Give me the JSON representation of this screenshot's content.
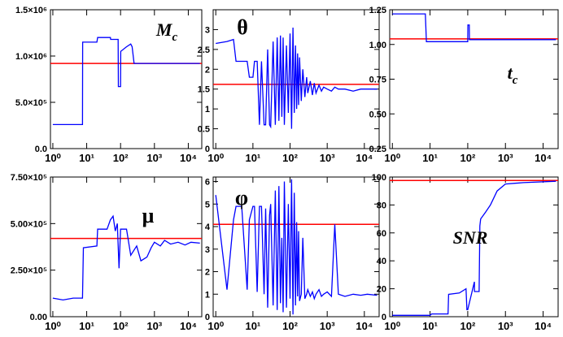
{
  "chart_data": [
    {
      "type": "line",
      "annotation": {
        "main": "M",
        "sub": "c"
      },
      "log_x": true,
      "xlim": [
        0.85,
        25000
      ],
      "xticks": [
        {
          "value": 1,
          "label": "10⁰"
        },
        {
          "value": 10,
          "label": "10¹"
        },
        {
          "value": 100,
          "label": "10²"
        },
        {
          "value": 1000,
          "label": "10³"
        },
        {
          "value": 10000,
          "label": "10⁴"
        }
      ],
      "ylim": [
        0,
        1500000
      ],
      "yticks": [
        {
          "value": 0,
          "label": "0.0"
        },
        {
          "value": 500000,
          "label": "5.0×10⁵"
        },
        {
          "value": 1000000,
          "label": "1.0×10⁶"
        },
        {
          "value": 1500000,
          "label": "1.5×10⁶"
        }
      ],
      "series": [
        {
          "color": "#0000ff",
          "x": [
            1,
            7.5,
            7.6,
            20,
            21,
            50,
            51,
            85,
            86,
            100,
            101,
            150,
            200,
            220,
            250,
            22000
          ],
          "values": [
            260000,
            260000,
            1150000,
            1150000,
            1200000,
            1200000,
            1180000,
            1180000,
            670000,
            670000,
            1050000,
            1100000,
            1130000,
            1100000,
            920000,
            920000
          ]
        }
      ],
      "reference_line": {
        "value": 920000,
        "color": "#ff0000"
      }
    },
    {
      "type": "line",
      "annotation": {
        "main": "θ"
      },
      "log_x": true,
      "xlim": [
        0.85,
        25000
      ],
      "xticks": [
        {
          "value": 1,
          "label": "10⁰"
        },
        {
          "value": 10,
          "label": "10¹"
        },
        {
          "value": 100,
          "label": "10²"
        },
        {
          "value": 1000,
          "label": "10³"
        },
        {
          "value": 10000,
          "label": "10⁴"
        }
      ],
      "ylim": [
        0,
        3.5
      ],
      "yticks": [
        0,
        0.5,
        1,
        1.5,
        2,
        2.5,
        3
      ],
      "series": [
        {
          "color": "#0000ff",
          "x": [
            1,
            2,
            3,
            3.5,
            5,
            7,
            8,
            10,
            11,
            13,
            15,
            17,
            20,
            22,
            25,
            28,
            30,
            35,
            40,
            45,
            50,
            55,
            60,
            65,
            70,
            80,
            90,
            100,
            110,
            120,
            130,
            140,
            150,
            160,
            170,
            180,
            200,
            220,
            250,
            280,
            300,
            350,
            400,
            450,
            500,
            600,
            700,
            800,
            1000,
            1300,
            1600,
            2000,
            3000,
            5000,
            8000,
            12000,
            22000
          ],
          "values": [
            2.65,
            2.7,
            2.75,
            2.2,
            2.2,
            2.2,
            1.8,
            1.8,
            2.2,
            2.2,
            0.6,
            2.2,
            0.6,
            0.6,
            2.5,
            0.6,
            0.55,
            2.7,
            0.6,
            2.8,
            0.7,
            2.85,
            0.8,
            2.8,
            0.6,
            2.6,
            0.9,
            2.9,
            0.5,
            3.05,
            0.9,
            2.6,
            1.0,
            2.4,
            1.1,
            2.3,
            1.2,
            2.0,
            1.3,
            1.8,
            1.4,
            1.7,
            1.35,
            1.65,
            1.4,
            1.6,
            1.45,
            1.55,
            1.5,
            1.45,
            1.55,
            1.5,
            1.5,
            1.45,
            1.5,
            1.5,
            1.5
          ]
        }
      ],
      "reference_line": {
        "value": 1.62,
        "color": "#ff0000"
      }
    },
    {
      "type": "line",
      "annotation": {
        "main": "t",
        "sub": "c"
      },
      "log_x": true,
      "xlim": [
        0.85,
        25000
      ],
      "xticks": [
        {
          "value": 1,
          "label": "10⁰"
        },
        {
          "value": 10,
          "label": "10¹"
        },
        {
          "value": 100,
          "label": "10²"
        },
        {
          "value": 1000,
          "label": "10³"
        },
        {
          "value": 10000,
          "label": "10⁴"
        }
      ],
      "ylim": [
        0.25,
        1.25
      ],
      "yticks": [
        {
          "value": 0.25,
          "label": "0.25"
        },
        {
          "value": 0.5,
          "label": "0.50"
        },
        {
          "value": 0.75,
          "label": "0.75"
        },
        {
          "value": 1,
          "label": "1.00"
        },
        {
          "value": 1.25,
          "label": "1.25"
        }
      ],
      "series": [
        {
          "color": "#0000ff",
          "x": [
            1,
            7.5,
            8,
            100,
            101,
            110,
            111,
            22000
          ],
          "values": [
            1.22,
            1.22,
            1.02,
            1.02,
            1.14,
            1.14,
            1.035,
            1.035
          ]
        }
      ],
      "reference_line": {
        "value": 1.04,
        "color": "#ff0000"
      }
    },
    {
      "type": "line",
      "annotation": {
        "main": "μ"
      },
      "log_x": true,
      "xlim": [
        0.85,
        25000
      ],
      "xticks": [
        {
          "value": 1,
          "label": "10⁰"
        },
        {
          "value": 10,
          "label": "10¹"
        },
        {
          "value": 100,
          "label": "10²"
        },
        {
          "value": 1000,
          "label": "10³"
        },
        {
          "value": 10000,
          "label": "10⁴"
        }
      ],
      "ylim": [
        0,
        750000
      ],
      "yticks": [
        {
          "value": 0,
          "label": "0.00"
        },
        {
          "value": 250000,
          "label": "2.50×10⁵"
        },
        {
          "value": 500000,
          "label": "5.00×10⁵"
        },
        {
          "value": 750000,
          "label": "7.50×10⁵"
        }
      ],
      "series": [
        {
          "color": "#0000ff",
          "x": [
            1,
            2,
            4,
            7.5,
            8,
            20,
            21,
            40,
            50,
            60,
            70,
            80,
            90,
            100,
            150,
            200,
            300,
            400,
            600,
            800,
            1000,
            1500,
            2000,
            3000,
            5000,
            8000,
            12000,
            22000
          ],
          "values": [
            100000,
            90000,
            100000,
            100000,
            370000,
            380000,
            470000,
            470000,
            520000,
            540000,
            460000,
            500000,
            260000,
            470000,
            470000,
            330000,
            380000,
            300000,
            320000,
            370000,
            400000,
            380000,
            410000,
            390000,
            400000,
            385000,
            400000,
            395000
          ]
        }
      ],
      "reference_line": {
        "value": 420000,
        "color": "#ff0000"
      }
    },
    {
      "type": "line",
      "annotation": {
        "main": "φ"
      },
      "log_x": true,
      "xlim": [
        0.85,
        25000
      ],
      "xticks": [
        {
          "value": 1,
          "label": "10⁰"
        },
        {
          "value": 10,
          "label": "10¹"
        },
        {
          "value": 100,
          "label": "10²"
        },
        {
          "value": 1000,
          "label": "10³"
        },
        {
          "value": 10000,
          "label": "10⁴"
        }
      ],
      "ylim": [
        0,
        6.2
      ],
      "yticks": [
        0,
        1,
        2,
        3,
        4,
        5,
        6
      ],
      "series": [
        {
          "color": "#0000ff",
          "x": [
            1,
            2,
            3,
            3.5,
            5,
            7,
            8,
            10,
            11,
            13,
            15,
            17,
            20,
            22,
            25,
            28,
            30,
            35,
            40,
            45,
            50,
            55,
            60,
            65,
            70,
            80,
            90,
            100,
            110,
            120,
            130,
            140,
            150,
            160,
            170,
            180,
            200,
            220,
            250,
            280,
            300,
            350,
            400,
            450,
            500,
            600,
            700,
            800,
            1000,
            1300,
            1600,
            2000,
            3000,
            5000,
            8000,
            12000,
            22000
          ],
          "values": [
            5.4,
            1.2,
            4.3,
            4.9,
            4.9,
            1.2,
            4.3,
            4.9,
            4.9,
            1.1,
            4.9,
            4.9,
            1.0,
            4.8,
            0.4,
            4.5,
            5.0,
            0.5,
            5.6,
            0.3,
            5.8,
            0.6,
            3.5,
            0.2,
            6.0,
            0.4,
            5.0,
            0.8,
            6.1,
            0.1,
            5.5,
            0.5,
            4.2,
            0.9,
            3.8,
            0.7,
            1.0,
            3.5,
            0.8,
            1.0,
            1.2,
            0.9,
            1.1,
            0.8,
            1.0,
            1.2,
            0.9,
            1.0,
            1.1,
            0.9,
            4.1,
            1.0,
            0.9,
            1.0,
            0.95,
            1.0,
            0.95
          ]
        }
      ],
      "reference_line": {
        "value": 4.1,
        "color": "#ff0000"
      }
    },
    {
      "type": "line",
      "annotation": {
        "main": "SNR"
      },
      "log_x": true,
      "xlim": [
        0.85,
        25000
      ],
      "xticks": [
        {
          "value": 1,
          "label": "10⁰"
        },
        {
          "value": 10,
          "label": "10¹"
        },
        {
          "value": 100,
          "label": "10²"
        },
        {
          "value": 1000,
          "label": "10³"
        },
        {
          "value": 10000,
          "label": "10⁴"
        }
      ],
      "ylim": [
        0,
        100
      ],
      "yticks": [
        0,
        20,
        40,
        60,
        80,
        100
      ],
      "series": [
        {
          "color": "#0000ff",
          "x": [
            1,
            10,
            11,
            30,
            31,
            60,
            90,
            95,
            100,
            150,
            151,
            200,
            210,
            220,
            300,
            400,
            600,
            1000,
            3000,
            22000
          ],
          "values": [
            1,
            1,
            2,
            2,
            16,
            17,
            20,
            5,
            5,
            25,
            18,
            18,
            65,
            70,
            75,
            80,
            90,
            95,
            96,
            97
          ]
        }
      ],
      "reference_line": {
        "value": 97.5,
        "color": "#ff0000"
      }
    }
  ]
}
